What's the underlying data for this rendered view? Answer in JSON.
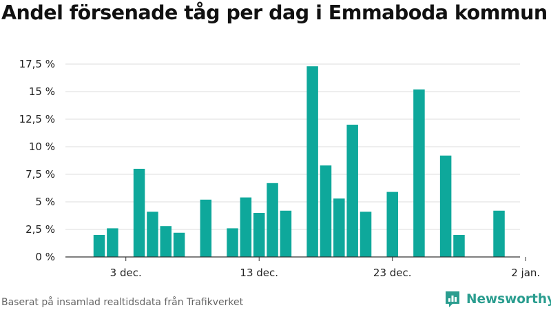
{
  "title": "Andel försenade tåg per dag i Emmaboda kommun",
  "source": "Baserat på insamlad realtidsdata från Trafikverket",
  "brand": {
    "name": "Newsworthy",
    "icon": "newsworthy-logo-icon"
  },
  "colors": {
    "bar": "#0ea89b",
    "grid": "#dddddd",
    "axis": "#333333",
    "brand": "#2a9d8f"
  },
  "chart_data": {
    "type": "bar",
    "title": "Andel försenade tåg per dag i Emmaboda kommun",
    "xlabel": "",
    "ylabel": "",
    "ylim": [
      0,
      17.5
    ],
    "grid": true,
    "y_ticks": [
      {
        "value": 0,
        "label": "0 %"
      },
      {
        "value": 2.5,
        "label": "2,5 %"
      },
      {
        "value": 5,
        "label": "5 %"
      },
      {
        "value": 7.5,
        "label": "7,5 %"
      },
      {
        "value": 10,
        "label": "10 %"
      },
      {
        "value": 12.5,
        "label": "12,5 %"
      },
      {
        "value": 15,
        "label": "15 %"
      },
      {
        "value": 17.5,
        "label": "17,5 %"
      }
    ],
    "x_ticks": [
      {
        "date": "2022-12-03",
        "label": "3 dec."
      },
      {
        "date": "2022-12-13",
        "label": "13 dec."
      },
      {
        "date": "2022-12-23",
        "label": "23 dec."
      },
      {
        "date": "2023-01-02",
        "label": "2 jan."
      }
    ],
    "x": [
      "2022-11-30",
      "2022-12-01",
      "2022-12-02",
      "2022-12-03",
      "2022-12-04",
      "2022-12-05",
      "2022-12-06",
      "2022-12-07",
      "2022-12-08",
      "2022-12-09",
      "2022-12-10",
      "2022-12-11",
      "2022-12-12",
      "2022-12-13",
      "2022-12-14",
      "2022-12-15",
      "2022-12-16",
      "2022-12-17",
      "2022-12-18",
      "2022-12-19",
      "2022-12-20",
      "2022-12-21",
      "2022-12-22",
      "2022-12-23",
      "2022-12-24",
      "2022-12-25",
      "2022-12-26",
      "2022-12-27",
      "2022-12-28",
      "2022-12-29",
      "2022-12-30",
      "2022-12-31",
      "2023-01-01",
      "2023-01-02"
    ],
    "values": [
      0,
      2.0,
      2.6,
      0,
      8.0,
      4.1,
      2.8,
      2.2,
      0,
      5.2,
      0,
      2.6,
      5.4,
      4.0,
      6.7,
      4.2,
      0,
      17.3,
      8.3,
      5.3,
      12.0,
      4.1,
      0,
      5.9,
      0,
      15.2,
      0,
      9.2,
      2.0,
      0,
      0,
      4.2,
      0,
      0
    ]
  }
}
